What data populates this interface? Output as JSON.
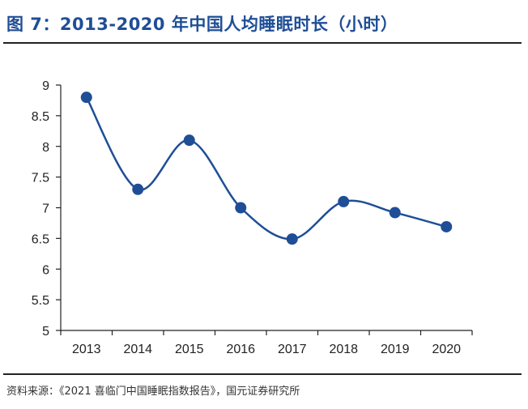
{
  "header": {
    "title": "图 7：2013-2020 年中国人均睡眠时长（小时）"
  },
  "footer": {
    "source": "资料来源：《2021 喜临门中国睡眠指数报告》，国元证券研究所"
  },
  "chart_data": {
    "type": "line",
    "title": "图 7：2013-2020 年中国人均睡眠时长（小时）",
    "xlabel": "",
    "ylabel": "",
    "categories": [
      "2013",
      "2014",
      "2015",
      "2016",
      "2017",
      "2018",
      "2019",
      "2020"
    ],
    "values": [
      8.8,
      7.3,
      8.1,
      7.0,
      6.49,
      7.1,
      6.92,
      6.69
    ],
    "ylim": [
      5,
      9
    ],
    "yticks": [
      "5",
      "5.5",
      "6",
      "6.5",
      "7",
      "7.5",
      "8",
      "8.5",
      "9"
    ],
    "grid": false,
    "legend": "none",
    "smooth": true,
    "colors": {
      "line": "#1f4e96",
      "marker": "#1f4e96",
      "axis": "#222222",
      "title": "#1f4e96"
    }
  }
}
